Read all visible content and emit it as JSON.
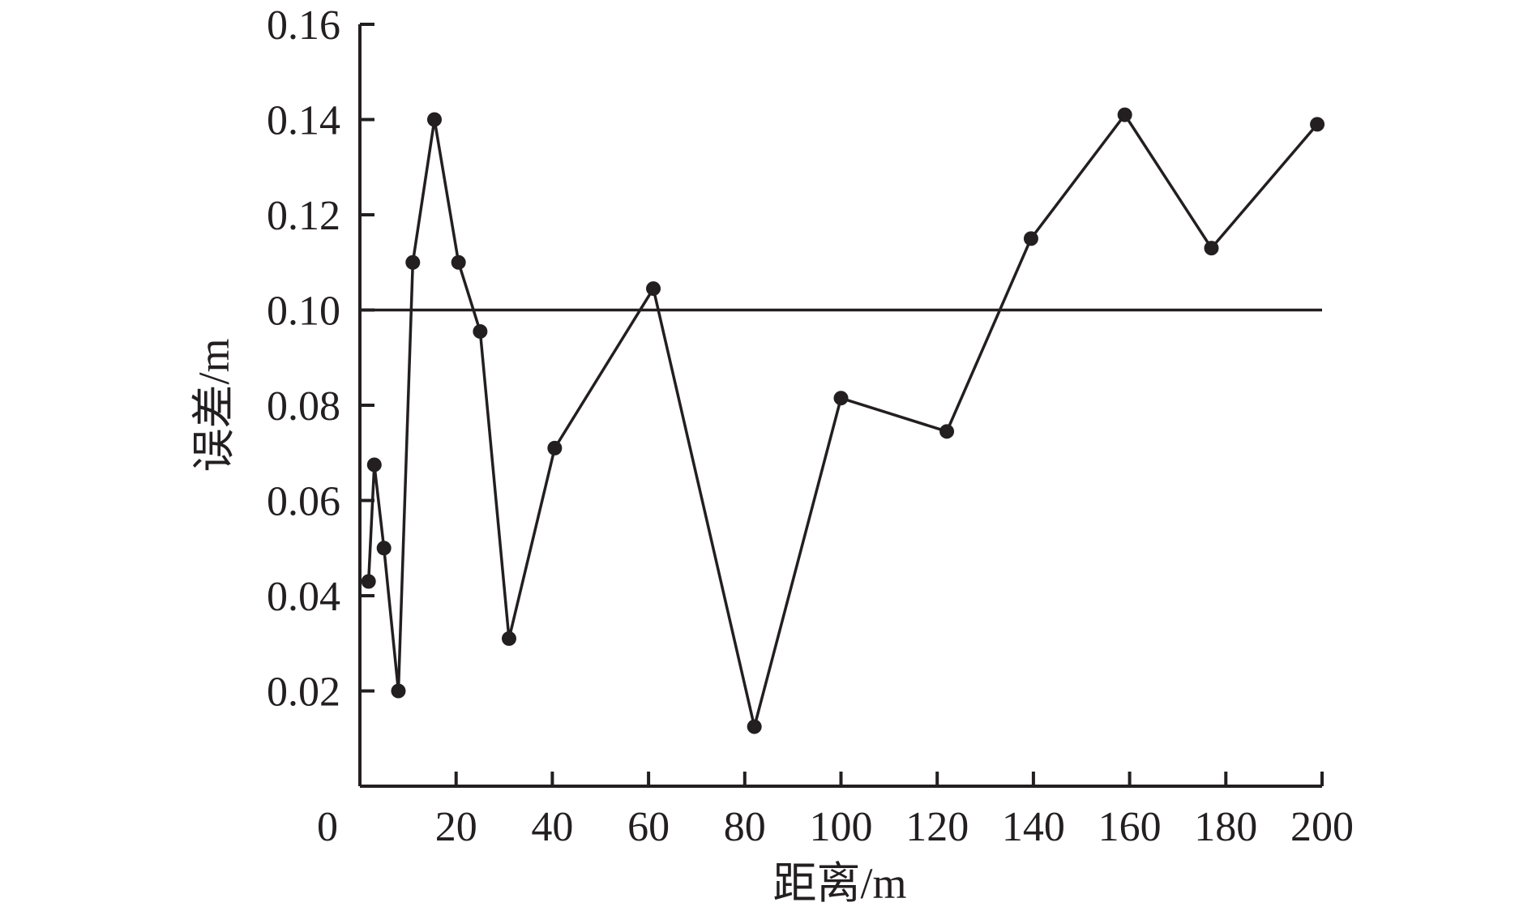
{
  "chart_data": {
    "type": "line",
    "title": "",
    "xlabel": "距离/m",
    "ylabel": "误差/m",
    "xlim": [
      0,
      200
    ],
    "ylim": [
      0,
      0.16
    ],
    "x_ticks": [
      0,
      20,
      40,
      60,
      80,
      100,
      120,
      140,
      160,
      180,
      200
    ],
    "x_tick_labels": [
      "0",
      "20",
      "40",
      "60",
      "80",
      "100",
      "120",
      "140",
      "160",
      "180",
      "200"
    ],
    "y_ticks": [
      0.02,
      0.04,
      0.06,
      0.08,
      0.1,
      0.12,
      0.14,
      0.16
    ],
    "y_tick_labels": [
      "0.02",
      "0.04",
      "0.06",
      "0.08",
      "0.10",
      "0.12",
      "0.14",
      "0.16"
    ],
    "grid": false,
    "series": [
      {
        "x": [
          1.8,
          3,
          5,
          8,
          11,
          15.5,
          20.5,
          25,
          31,
          40.5,
          61,
          82,
          100,
          122,
          139.5,
          159,
          177,
          199
        ],
        "y": [
          0.043,
          0.0675,
          0.05,
          0.02,
          0.11,
          0.14,
          0.11,
          0.0955,
          0.031,
          0.071,
          0.1045,
          0.0125,
          0.0815,
          0.0745,
          0.115,
          0.141,
          0.113,
          0.139
        ]
      }
    ],
    "reference_line": {
      "y": 0.1,
      "x_range": [
        0,
        200
      ]
    },
    "colors": {
      "ink": "#231f20",
      "background": "#ffffff"
    }
  }
}
